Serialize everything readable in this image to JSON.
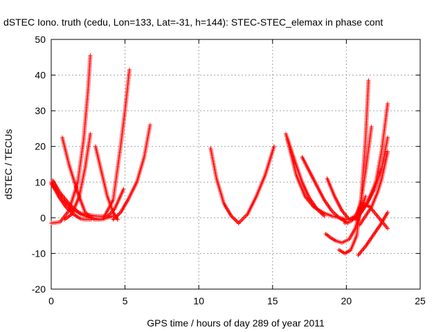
{
  "chart_data": {
    "type": "scatter",
    "title": "dSTEC Iono. truth (cedu, Lon=133, Lat=-31, h=144): STEC-STEC_elemax in phase cont",
    "xlabel": "GPS time / hours of day 289 of year 2011",
    "ylabel": "dSTEC  / TECUs",
    "xlim": [
      0,
      25
    ],
    "ylim": [
      -20,
      50
    ],
    "xticks": [
      "0",
      "5",
      "10",
      "15",
      "20",
      "25"
    ],
    "yticks": [
      "-20",
      "-10",
      "0",
      "10",
      "20",
      "30",
      "40",
      "50"
    ],
    "grid": true,
    "marker": "+",
    "color": "#ff0000",
    "series": [
      {
        "x": [
          0.0,
          0.6,
          1.2,
          1.8,
          2.2,
          2.5,
          2.65
        ],
        "y": [
          -1.5,
          -1.2,
          2.0,
          10.0,
          22.0,
          36.0,
          45.5
        ]
      },
      {
        "x": [
          0.0,
          0.5,
          1.0,
          1.5,
          2.0,
          2.3,
          2.7
        ],
        "y": [
          10.0,
          6.0,
          3.0,
          1.0,
          -0.3,
          -0.5,
          -0.5
        ]
      },
      {
        "x": [
          0.1,
          0.6,
          1.3,
          2.0,
          2.6,
          3.4,
          4.2
        ],
        "y": [
          10.5,
          7.0,
          3.5,
          1.0,
          0.0,
          -0.5,
          0.5
        ]
      },
      {
        "x": [
          0.0,
          0.8,
          1.5,
          2.2,
          3.0,
          3.8,
          4.3,
          4.9
        ],
        "y": [
          9.5,
          5.0,
          2.0,
          1.0,
          0.5,
          0.3,
          2.5,
          8.0
        ]
      },
      {
        "x": [
          0.75,
          1.2,
          1.8,
          2.3,
          2.8
        ],
        "y": [
          22.5,
          15.0,
          7.0,
          1.5,
          -0.2
        ]
      },
      {
        "x": [
          0.9,
          1.4,
          1.9,
          2.3,
          2.65
        ],
        "y": [
          -0.5,
          1.0,
          6.0,
          14.0,
          23.5
        ]
      },
      {
        "x": [
          3.0,
          3.4,
          3.8,
          4.2,
          4.5
        ],
        "y": [
          20.0,
          13.0,
          6.0,
          1.5,
          -0.5
        ]
      },
      {
        "x": [
          2.9,
          3.5,
          4.2,
          4.7,
          5.0,
          5.3
        ],
        "y": [
          -0.5,
          -0.4,
          5.0,
          20.0,
          30.0,
          41.5
        ]
      },
      {
        "x": [
          4.2,
          4.7,
          5.2,
          5.8,
          6.3,
          6.7
        ],
        "y": [
          -0.5,
          1.5,
          5.0,
          10.0,
          17.0,
          26.0
        ]
      },
      {
        "x": [
          10.8,
          11.2,
          11.7,
          12.2,
          12.7
        ],
        "y": [
          19.5,
          11.0,
          4.0,
          0.5,
          -1.5
        ]
      },
      {
        "x": [
          12.7,
          13.3,
          13.9,
          14.5,
          15.1
        ],
        "y": [
          -1.5,
          1.0,
          6.0,
          12.0,
          20.0
        ]
      },
      {
        "x": [
          15.9,
          16.5,
          17.0,
          17.5,
          18.0,
          18.5
        ],
        "y": [
          23.5,
          16.0,
          10.0,
          5.5,
          2.5,
          0.5
        ]
      },
      {
        "x": [
          16.0,
          16.6,
          17.2,
          17.8,
          18.4,
          19.0,
          19.6,
          20.0
        ],
        "y": [
          22.0,
          12.0,
          6.0,
          3.0,
          1.5,
          0.5,
          0.0,
          -0.5
        ]
      },
      {
        "x": [
          17.0,
          17.5,
          18.0,
          18.5,
          19.0,
          19.5,
          20.1
        ],
        "y": [
          17.0,
          13.0,
          9.0,
          5.0,
          2.0,
          0.0,
          -1.5
        ]
      },
      {
        "x": [
          18.7,
          19.2,
          19.7,
          20.2,
          20.6,
          21.0
        ],
        "y": [
          11.0,
          6.0,
          2.0,
          -0.5,
          0.5,
          3.5
        ]
      },
      {
        "x": [
          18.6,
          18.9,
          19.3,
          19.7,
          20.2,
          20.6,
          20.9,
          21.3
        ],
        "y": [
          -4.5,
          -5.5,
          -6.5,
          -7.0,
          -6.0,
          -3.0,
          1.0,
          6.0
        ]
      },
      {
        "x": [
          19.5,
          19.9,
          20.3,
          20.7,
          21.0,
          21.3,
          21.5
        ],
        "y": [
          -9.0,
          -10.0,
          -9.0,
          -5.0,
          5.0,
          22.0,
          38.5
        ]
      },
      {
        "x": [
          19.9,
          20.3,
          20.7,
          21.0,
          21.3,
          21.7
        ],
        "y": [
          -1.5,
          -1.0,
          0.5,
          5.0,
          13.0,
          25.5
        ]
      },
      {
        "x": [
          20.4,
          20.9,
          21.4,
          22.0,
          22.4,
          22.8
        ],
        "y": [
          -0.5,
          1.0,
          4.0,
          10.0,
          19.0,
          32.0
        ]
      },
      {
        "x": [
          20.6,
          21.0,
          21.4,
          21.9,
          22.4,
          22.8
        ],
        "y": [
          -0.5,
          1.5,
          4.0,
          8.0,
          14.0,
          22.5
        ]
      },
      {
        "x": [
          20.8,
          21.3,
          21.8,
          22.3,
          22.8
        ],
        "y": [
          -10.5,
          -8.0,
          -5.0,
          -2.0,
          1.5
        ]
      },
      {
        "x": [
          20.9,
          21.3,
          21.7,
          22.1,
          22.4,
          22.8
        ],
        "y": [
          -2.0,
          0.5,
          3.0,
          7.0,
          11.0,
          18.5
        ]
      },
      {
        "x": [
          20.9,
          21.2,
          21.6,
          22.0,
          22.4,
          22.8
        ],
        "y": [
          3.0,
          4.0,
          3.0,
          1.0,
          -1.0,
          -3.0
        ]
      }
    ]
  }
}
